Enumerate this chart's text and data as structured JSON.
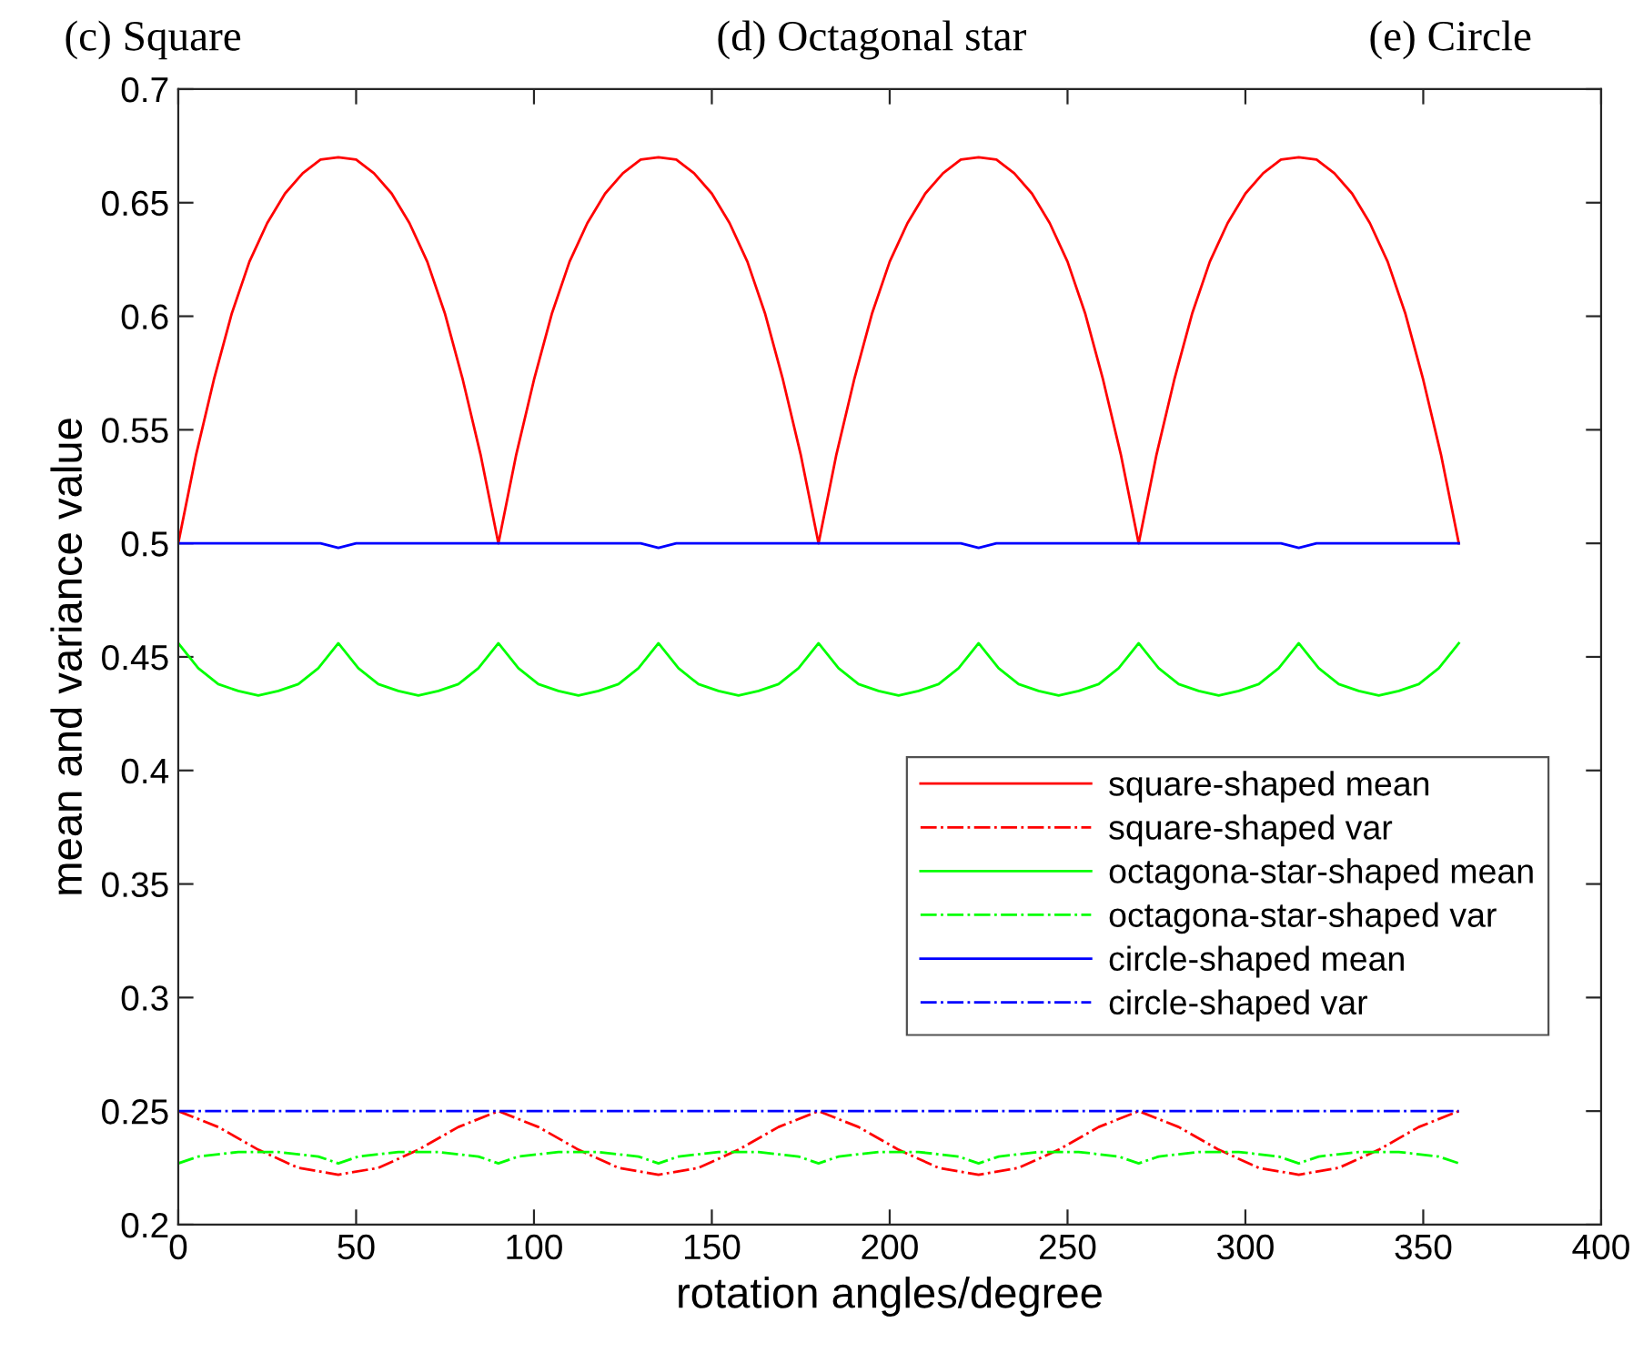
{
  "chart_data": {
    "type": "line",
    "xlabel": "rotation angles/degree",
    "ylabel": "mean and variance value",
    "annotations": [
      "(c) Square",
      "(d) Octagonal star",
      "(e) Circle"
    ],
    "xlim": [
      0,
      400
    ],
    "xticks": [
      0,
      50,
      100,
      150,
      200,
      250,
      300,
      350,
      400
    ],
    "ylim": [
      0.2,
      0.7
    ],
    "yticks": [
      0.2,
      0.25,
      0.3,
      0.35,
      0.4,
      0.45,
      0.5,
      0.55,
      0.6,
      0.65,
      0.7
    ],
    "grid": false,
    "legend": "bottom right",
    "marker": "none",
    "series": [
      {
        "name": "square-shaped mean",
        "color": "#ff0000",
        "line_style": "solid",
        "x": [
          0,
          5,
          10,
          15,
          20,
          25,
          30,
          35,
          40,
          45,
          50,
          55,
          60,
          65,
          70,
          75,
          80,
          85,
          90,
          95,
          100,
          105,
          110,
          115,
          120,
          125,
          130,
          135,
          140,
          145,
          150,
          155,
          160,
          165,
          170,
          175,
          180,
          185,
          190,
          195,
          200,
          205,
          210,
          215,
          220,
          225,
          230,
          235,
          240,
          245,
          250,
          255,
          260,
          265,
          270,
          275,
          280,
          285,
          290,
          295,
          300,
          305,
          310,
          315,
          320,
          325,
          330,
          335,
          340,
          345,
          350,
          355,
          360
        ],
        "values": [
          0.5,
          0.539,
          0.572,
          0.601,
          0.624,
          0.641,
          0.654,
          0.663,
          0.669,
          0.67,
          0.669,
          0.663,
          0.654,
          0.641,
          0.624,
          0.601,
          0.572,
          0.539,
          0.5,
          0.539,
          0.572,
          0.601,
          0.624,
          0.641,
          0.654,
          0.663,
          0.669,
          0.67,
          0.669,
          0.663,
          0.654,
          0.641,
          0.624,
          0.601,
          0.572,
          0.539,
          0.5,
          0.539,
          0.572,
          0.601,
          0.624,
          0.641,
          0.654,
          0.663,
          0.669,
          0.67,
          0.669,
          0.663,
          0.654,
          0.641,
          0.624,
          0.601,
          0.572,
          0.539,
          0.5,
          0.539,
          0.572,
          0.601,
          0.624,
          0.641,
          0.654,
          0.663,
          0.669,
          0.67,
          0.669,
          0.663,
          0.654,
          0.641,
          0.624,
          0.601,
          0.572,
          0.539,
          0.5
        ]
      },
      {
        "name": "square-shaped var",
        "color": "#ff0000",
        "line_style": "dashdot",
        "x": [
          0,
          11.25,
          22.5,
          33.75,
          45,
          56.25,
          67.5,
          78.75,
          90,
          101.25,
          112.5,
          123.75,
          135,
          146.25,
          157.5,
          168.75,
          180,
          191.25,
          202.5,
          213.75,
          225,
          236.25,
          247.5,
          258.75,
          270,
          281.25,
          292.5,
          303.75,
          315,
          326.25,
          337.5,
          348.75,
          360
        ],
        "values": [
          0.25,
          0.243,
          0.233,
          0.225,
          0.222,
          0.225,
          0.233,
          0.243,
          0.25,
          0.243,
          0.233,
          0.225,
          0.222,
          0.225,
          0.233,
          0.243,
          0.25,
          0.243,
          0.233,
          0.225,
          0.222,
          0.225,
          0.233,
          0.243,
          0.25,
          0.243,
          0.233,
          0.225,
          0.222,
          0.225,
          0.233,
          0.243,
          0.25
        ]
      },
      {
        "name": "octagona-star-shaped mean",
        "color": "#00ff00",
        "line_style": "solid",
        "x": [
          0,
          5.625,
          11.25,
          16.875,
          22.5,
          28.125,
          33.75,
          39.375,
          45,
          50.625,
          56.25,
          61.875,
          67.5,
          73.125,
          78.75,
          84.375,
          90,
          95.625,
          101.25,
          106.875,
          112.5,
          118.125,
          123.75,
          129.375,
          135,
          140.625,
          146.25,
          151.875,
          157.5,
          163.125,
          168.75,
          174.375,
          180,
          185.625,
          191.25,
          196.875,
          202.5,
          208.125,
          213.75,
          219.375,
          225,
          230.625,
          236.25,
          241.875,
          247.5,
          253.125,
          258.75,
          264.375,
          270,
          275.625,
          281.25,
          286.875,
          292.5,
          298.125,
          303.75,
          309.375,
          315,
          320.625,
          326.25,
          331.875,
          337.5,
          343.125,
          348.75,
          354.375,
          360
        ],
        "values": [
          0.456,
          0.445,
          0.438,
          0.435,
          0.433,
          0.435,
          0.438,
          0.445,
          0.456,
          0.445,
          0.438,
          0.435,
          0.433,
          0.435,
          0.438,
          0.445,
          0.456,
          0.445,
          0.438,
          0.435,
          0.433,
          0.435,
          0.438,
          0.445,
          0.456,
          0.445,
          0.438,
          0.435,
          0.433,
          0.435,
          0.438,
          0.445,
          0.456,
          0.445,
          0.438,
          0.435,
          0.433,
          0.435,
          0.438,
          0.445,
          0.456,
          0.445,
          0.438,
          0.435,
          0.433,
          0.435,
          0.438,
          0.445,
          0.456,
          0.445,
          0.438,
          0.435,
          0.433,
          0.435,
          0.438,
          0.445,
          0.456,
          0.445,
          0.438,
          0.435,
          0.433,
          0.435,
          0.438,
          0.445,
          0.456
        ]
      },
      {
        "name": "octagona-star-shaped var",
        "color": "#00ff00",
        "line_style": "dashdot",
        "x": [
          0,
          5.625,
          11.25,
          16.875,
          22.5,
          28.125,
          33.75,
          39.375,
          45,
          50.625,
          56.25,
          61.875,
          67.5,
          73.125,
          78.75,
          84.375,
          90,
          95.625,
          101.25,
          106.875,
          112.5,
          118.125,
          123.75,
          129.375,
          135,
          140.625,
          146.25,
          151.875,
          157.5,
          163.125,
          168.75,
          174.375,
          180,
          185.625,
          191.25,
          196.875,
          202.5,
          208.125,
          213.75,
          219.375,
          225,
          230.625,
          236.25,
          241.875,
          247.5,
          253.125,
          258.75,
          264.375,
          270,
          275.625,
          281.25,
          286.875,
          292.5,
          298.125,
          303.75,
          309.375,
          315,
          320.625,
          326.25,
          331.875,
          337.5,
          343.125,
          348.75,
          354.375,
          360
        ],
        "values": [
          0.227,
          0.23,
          0.231,
          0.232,
          0.232,
          0.232,
          0.231,
          0.23,
          0.227,
          0.23,
          0.231,
          0.232,
          0.232,
          0.232,
          0.231,
          0.23,
          0.227,
          0.23,
          0.231,
          0.232,
          0.232,
          0.232,
          0.231,
          0.23,
          0.227,
          0.23,
          0.231,
          0.232,
          0.232,
          0.232,
          0.231,
          0.23,
          0.227,
          0.23,
          0.231,
          0.232,
          0.232,
          0.232,
          0.231,
          0.23,
          0.227,
          0.23,
          0.231,
          0.232,
          0.232,
          0.232,
          0.231,
          0.23,
          0.227,
          0.23,
          0.231,
          0.232,
          0.232,
          0.232,
          0.231,
          0.23,
          0.227,
          0.23,
          0.231,
          0.232,
          0.232,
          0.232,
          0.231,
          0.23,
          0.227
        ]
      },
      {
        "name": "circle-shaped mean",
        "color": "#0000ff",
        "line_style": "solid",
        "x": [
          0,
          40,
          45,
          50,
          130,
          135,
          140,
          220,
          225,
          230,
          310,
          315,
          320,
          360
        ],
        "values": [
          0.5,
          0.5,
          0.498,
          0.5,
          0.5,
          0.498,
          0.5,
          0.5,
          0.498,
          0.5,
          0.5,
          0.498,
          0.5,
          0.5
        ]
      },
      {
        "name": "circle-shaped var",
        "color": "#0000ff",
        "line_style": "dashdot",
        "x": [
          0,
          360
        ],
        "values": [
          0.25,
          0.25
        ]
      }
    ]
  }
}
